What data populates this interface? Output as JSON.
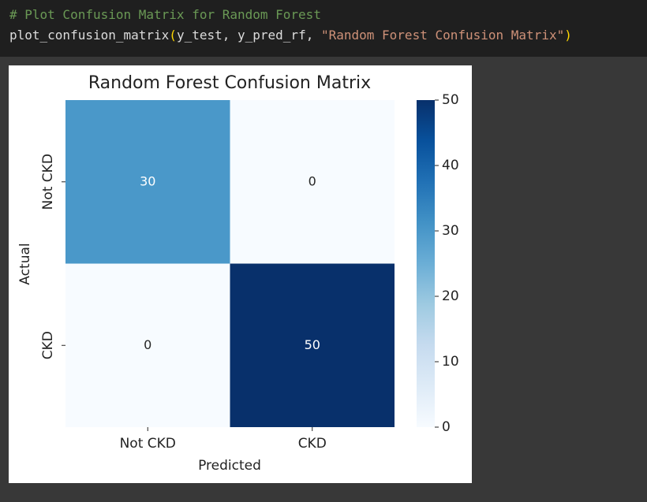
{
  "code": {
    "comment": "# Plot Confusion Matrix for Random Forest",
    "tokens": [
      "plot_confusion_matrix",
      "(",
      "y_test, y_pred_rf, ",
      "\"Random Forest Confusion Matrix\"",
      ")"
    ]
  },
  "chart_data": {
    "type": "heatmap",
    "title": "Random Forest Confusion Matrix",
    "xlabel": "Predicted",
    "ylabel": "Actual",
    "x_categories": [
      "Not CKD",
      "CKD"
    ],
    "y_categories": [
      "Not CKD",
      "CKD"
    ],
    "values": [
      [
        30,
        0
      ],
      [
        0,
        50
      ]
    ],
    "colormap": "Blues",
    "clim": [
      0,
      50
    ],
    "cticks": [
      0,
      10,
      20,
      30,
      40,
      50
    ]
  }
}
